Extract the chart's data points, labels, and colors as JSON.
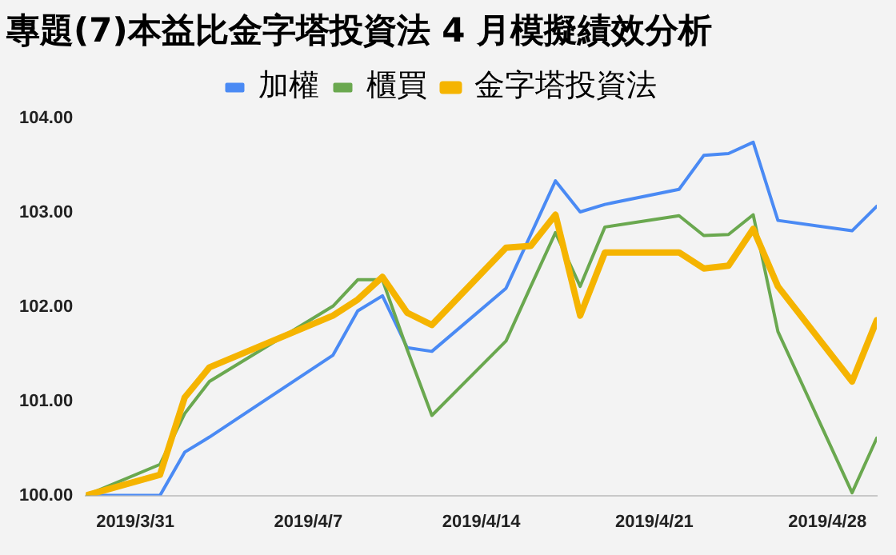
{
  "chart_data": {
    "type": "line",
    "title": "專題(7)本益比金字塔投資法 4 月模擬績效分析",
    "x": [
      "2019-03-29",
      "2019-04-01",
      "2019-04-02",
      "2019-04-03",
      "2019-04-08",
      "2019-04-09",
      "2019-04-10",
      "2019-04-11",
      "2019-04-12",
      "2019-04-15",
      "2019-04-16",
      "2019-04-17",
      "2019-04-18",
      "2019-04-19",
      "2019-04-22",
      "2019-04-23",
      "2019-04-24",
      "2019-04-25",
      "2019-04-26",
      "2019-04-29",
      "2019-04-30"
    ],
    "series": [
      {
        "name": "加權",
        "color": "#4a8af4",
        "values": [
          100.0,
          100.0,
          100.46,
          100.62,
          101.49,
          101.96,
          102.12,
          101.57,
          101.53,
          102.2,
          102.77,
          103.34,
          103.01,
          103.09,
          103.25,
          103.61,
          103.63,
          103.75,
          102.92,
          102.81,
          103.07
        ]
      },
      {
        "name": "櫃買",
        "color": "#6aa84f",
        "values": [
          100.0,
          100.33,
          100.87,
          101.21,
          102.01,
          102.29,
          102.29,
          101.55,
          100.85,
          101.64,
          102.22,
          102.79,
          102.22,
          102.85,
          102.97,
          102.76,
          102.77,
          102.98,
          101.74,
          100.03,
          100.61
        ]
      },
      {
        "name": "金字塔投資法",
        "color": "#f5b400",
        "values": [
          100.0,
          100.22,
          101.04,
          101.36,
          101.91,
          102.08,
          102.32,
          101.94,
          101.81,
          102.63,
          102.65,
          102.98,
          101.91,
          102.58,
          102.58,
          102.41,
          102.44,
          102.83,
          102.22,
          101.21,
          101.86
        ]
      }
    ],
    "xticks": [
      {
        "value": "2019-03-31",
        "label": "2019/3/31"
      },
      {
        "value": "2019-04-07",
        "label": "2019/4/7"
      },
      {
        "value": "2019-04-14",
        "label": "2019/4/14"
      },
      {
        "value": "2019-04-21",
        "label": "2019/4/21"
      },
      {
        "value": "2019-04-28",
        "label": "2019/4/28"
      }
    ],
    "xlim": [
      "2019-03-29",
      "2019-04-30"
    ],
    "ylim": [
      100,
      104
    ],
    "yticks": [
      {
        "value": 100,
        "label": "100.00"
      },
      {
        "value": 101,
        "label": "101.00"
      },
      {
        "value": 102,
        "label": "102.00"
      },
      {
        "value": 103,
        "label": "103.00"
      },
      {
        "value": 104,
        "label": "104.00"
      }
    ],
    "legend": "top",
    "grid": false,
    "marker": "none",
    "line_style": "solid"
  }
}
